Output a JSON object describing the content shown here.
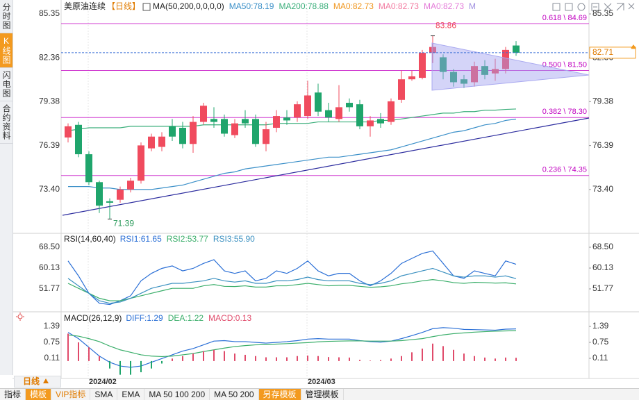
{
  "sidebar": [
    "分时图",
    "K线图",
    "闪电图",
    "合约资料"
  ],
  "period_button": "日线",
  "toolbar": [
    "指标",
    "模板",
    "VIP指标",
    "SMA",
    "EMA",
    "MA 50 100 200",
    "MA 50 200",
    "另存模板",
    "管理模板"
  ],
  "chart_data": [
    {
      "type": "candlestick",
      "title": "美原油连续",
      "period": "【日线】",
      "indicator": "MA(50,200,0,0,0,0)",
      "categories": [
        null,
        null,
        "2024/02",
        null,
        null,
        null,
        null,
        null,
        null,
        null,
        null,
        null,
        null,
        null,
        null,
        null,
        null,
        null,
        null,
        null,
        null,
        null,
        null,
        "2024/03",
        null,
        null,
        null,
        null,
        null,
        null,
        null,
        null,
        null,
        null,
        null,
        null,
        null,
        null,
        null,
        null,
        null,
        null,
        null,
        null
      ],
      "open": [
        76.94,
        77.8,
        75.8,
        73.9,
        72.6,
        72.7,
        73.4,
        74.0,
        76.2,
        76.3,
        77.7,
        77.6,
        76.5,
        78.0,
        78.2,
        78.2,
        77.1,
        78.2,
        78.2,
        76.5,
        77.6,
        78.3,
        78.3,
        78.4,
        80.0,
        78.8,
        78.2,
        79.3,
        79.2,
        77.7,
        78.2,
        78.0,
        79.5,
        80.9,
        81.0,
        82.7,
        82.4,
        81.4,
        80.9,
        80.7,
        81.8,
        81.3,
        81.6,
        83.2
      ],
      "high": [
        77.9,
        78.0,
        76.0,
        74.0,
        72.8,
        73.6,
        74.2,
        76.6,
        77.2,
        77.3,
        78.2,
        78.0,
        78.4,
        79.3,
        79.0,
        78.5,
        78.2,
        78.8,
        78.5,
        78.0,
        78.8,
        78.8,
        79.4,
        80.8,
        80.6,
        79.3,
        80.5,
        79.6,
        79.5,
        78.4,
        78.6,
        79.6,
        81.5,
        81.5,
        82.9,
        83.86,
        82.6,
        81.6,
        81.2,
        82.1,
        82.2,
        82.3,
        83.1,
        83.5
      ],
      "low": [
        76.6,
        75.6,
        73.7,
        71.8,
        71.39,
        72.5,
        73.2,
        73.8,
        76.0,
        76.0,
        76.7,
        76.2,
        75.9,
        77.8,
        77.6,
        77.0,
        76.9,
        77.6,
        76.3,
        76.0,
        77.3,
        77.8,
        78.0,
        78.2,
        78.4,
        78.0,
        78.0,
        78.7,
        77.5,
        77.0,
        77.6,
        77.8,
        79.3,
        80.8,
        80.9,
        82.0,
        80.9,
        80.4,
        80.3,
        80.4,
        80.9,
        80.8,
        81.3,
        82.5
      ],
      "close": [
        77.7,
        75.8,
        73.9,
        72.3,
        72.5,
        73.4,
        74.0,
        76.4,
        77.0,
        77.0,
        77.0,
        76.5,
        78.0,
        79.1,
        78.0,
        77.2,
        77.9,
        77.9,
        76.5,
        77.5,
        78.4,
        78.1,
        79.2,
        79.8,
        78.7,
        78.3,
        79.0,
        79.0,
        77.7,
        78.1,
        77.9,
        79.4,
        80.9,
        81.1,
        82.7,
        83.1,
        81.4,
        80.7,
        80.6,
        81.8,
        81.2,
        81.6,
        82.9,
        82.71
      ],
      "colors": {
        "up": "#f04b5e",
        "down": "#1fa56c"
      },
      "series": [
        {
          "name": "MA50:78.19",
          "color": "#3a8fc8",
          "values": [
            73.6,
            73.6,
            73.6,
            73.5,
            73.5,
            73.4,
            73.4,
            73.4,
            73.4,
            73.5,
            73.6,
            73.7,
            73.9,
            74.1,
            74.3,
            74.5,
            74.6,
            74.8,
            74.9,
            75.0,
            75.1,
            75.2,
            75.3,
            75.4,
            75.5,
            75.6,
            75.6,
            75.7,
            75.8,
            75.9,
            76.0,
            76.1,
            76.3,
            76.5,
            76.7,
            76.9,
            77.1,
            77.3,
            77.4,
            77.6,
            77.8,
            77.9,
            78.1,
            78.19
          ]
        },
        {
          "name": "MA200:78.88",
          "color": "#3aae7a",
          "values": [
            77.4,
            77.5,
            77.6,
            77.6,
            77.6,
            77.6,
            77.7,
            77.7,
            77.7,
            77.7,
            77.7,
            77.7,
            77.7,
            77.8,
            77.8,
            77.8,
            77.8,
            77.8,
            77.8,
            77.8,
            77.9,
            77.9,
            77.9,
            77.9,
            78.0,
            78.0,
            78.0,
            78.0,
            78.0,
            78.0,
            78.1,
            78.1,
            78.2,
            78.3,
            78.4,
            78.5,
            78.6,
            78.6,
            78.7,
            78.7,
            78.8,
            78.8,
            78.85,
            78.88
          ]
        }
      ],
      "legend_extra": [
        {
          "label": "MA0:82.73",
          "color": "#f0961e"
        },
        {
          "label": "MA0:82.73",
          "color": "#f27aa0"
        },
        {
          "label": "MA0:82.73",
          "color": "#e47ad8"
        },
        {
          "label": "M",
          "color": "#a090e0"
        }
      ],
      "fib_levels": [
        {
          "value": 84.69,
          "label": "0.618 \\ 84.69"
        },
        {
          "value": 81.5,
          "label": "0.500 \\ 81.50"
        },
        {
          "value": 78.3,
          "label": "0.382 \\ 78.30"
        },
        {
          "value": 74.35,
          "label": "0.236 \\ 74.35"
        }
      ],
      "high_label": 83.86,
      "low_label": 71.39,
      "last_price": 82.71,
      "ylim": [
        70.7,
        85.73
      ],
      "yticks": [
        {
          "value": 73.4,
          "label": "73.40"
        },
        76.39,
        79.38,
        82.36,
        85.35
      ]
    },
    {
      "type": "line",
      "title": "RSI(14,60,40)",
      "series": [
        {
          "name": "RSI1:61.65",
          "color": "#2a6fd6",
          "values": [
            63,
            57,
            50,
            46,
            45.5,
            47,
            49,
            55,
            58,
            60,
            61,
            59,
            60,
            62,
            63.5,
            59,
            58,
            59,
            55,
            56,
            59,
            58,
            60,
            63,
            59,
            57,
            58,
            58,
            55,
            53,
            55,
            58,
            62,
            64,
            66,
            67,
            62,
            57,
            56,
            59,
            58,
            57,
            63,
            61.65
          ]
        },
        {
          "name": "RSI2:53.77",
          "color": "#3aae6a",
          "values": [
            54,
            52,
            50,
            48,
            47,
            47,
            48,
            49,
            50,
            51,
            52,
            52,
            52,
            53,
            53.5,
            52.8,
            52.7,
            53,
            52.5,
            52.5,
            53,
            53,
            53.5,
            54,
            53.5,
            53,
            53.2,
            53.2,
            52.8,
            52.4,
            52.6,
            53,
            53.8,
            54.3,
            55,
            55.5,
            55,
            54.3,
            54,
            54.4,
            54.3,
            54.1,
            54.2,
            53.77
          ]
        },
        {
          "name": "RSI3:55.90",
          "color": "#3a90c0",
          "values": [
            56,
            53,
            50,
            47,
            46,
            46.5,
            48,
            50,
            52,
            53,
            54,
            54,
            54.5,
            55,
            56,
            55,
            54.5,
            55,
            54,
            54,
            55,
            55,
            55.5,
            56.5,
            55.5,
            55,
            55,
            55,
            54,
            53.5,
            54,
            55,
            57,
            58,
            59,
            60,
            58.5,
            57,
            56.5,
            57,
            57,
            56.5,
            57,
            55.9
          ]
        }
      ],
      "ylim": [
        43.68,
        71.57
      ],
      "yticks": [
        {
          "value": 68.5,
          "label": "68.50"
        },
        60.13,
        51.77
      ]
    },
    {
      "type": "macd",
      "title": "MACD(26,12,9)",
      "series": [
        {
          "name": "DIFF:1.29",
          "color": "#2a6fd6",
          "values": [
            1.15,
            0.9,
            0.55,
            0.2,
            -0.05,
            -0.2,
            -0.25,
            -0.2,
            -0.05,
            0.1,
            0.25,
            0.4,
            0.5,
            0.65,
            0.8,
            0.82,
            0.78,
            0.78,
            0.75,
            0.72,
            0.75,
            0.78,
            0.82,
            0.88,
            0.9,
            0.88,
            0.88,
            0.88,
            0.82,
            0.78,
            0.76,
            0.8,
            0.9,
            1.02,
            1.15,
            1.3,
            1.34,
            1.32,
            1.27,
            1.26,
            1.25,
            1.24,
            1.28,
            1.29
          ]
        },
        {
          "name": "DEA:1.22",
          "color": "#3aae6a",
          "values": [
            1.05,
            1.0,
            0.9,
            0.78,
            0.6,
            0.45,
            0.35,
            0.25,
            0.2,
            0.18,
            0.2,
            0.25,
            0.3,
            0.38,
            0.45,
            0.52,
            0.58,
            0.62,
            0.65,
            0.66,
            0.68,
            0.7,
            0.72,
            0.74,
            0.77,
            0.79,
            0.8,
            0.81,
            0.81,
            0.8,
            0.8,
            0.8,
            0.82,
            0.86,
            0.9,
            0.98,
            1.05,
            1.1,
            1.13,
            1.16,
            1.18,
            1.2,
            1.21,
            1.22
          ]
        },
        {
          "name": "MACD:0.13",
          "color": "#e04a6a",
          "down_color": "#1fa56c",
          "values": [
            1.1,
            0.75,
            0.55,
            0.2,
            -0.3,
            -0.55,
            -0.55,
            -0.45,
            -0.3,
            -0.1,
            0.1,
            0.2,
            0.3,
            0.4,
            0.45,
            0.4,
            0.3,
            0.25,
            0.2,
            0.15,
            0.15,
            0.15,
            0.2,
            0.22,
            0.2,
            0.16,
            0.15,
            0.14,
            0.05,
            0.02,
            0.04,
            0.1,
            0.2,
            0.35,
            0.5,
            0.7,
            0.6,
            0.45,
            0.3,
            0.2,
            0.14,
            0.1,
            0.14,
            0.13
          ]
        }
      ],
      "ylim": [
        -0.7,
        1.67
      ],
      "yticks": [
        0.11,
        0.75,
        1.39
      ]
    }
  ]
}
